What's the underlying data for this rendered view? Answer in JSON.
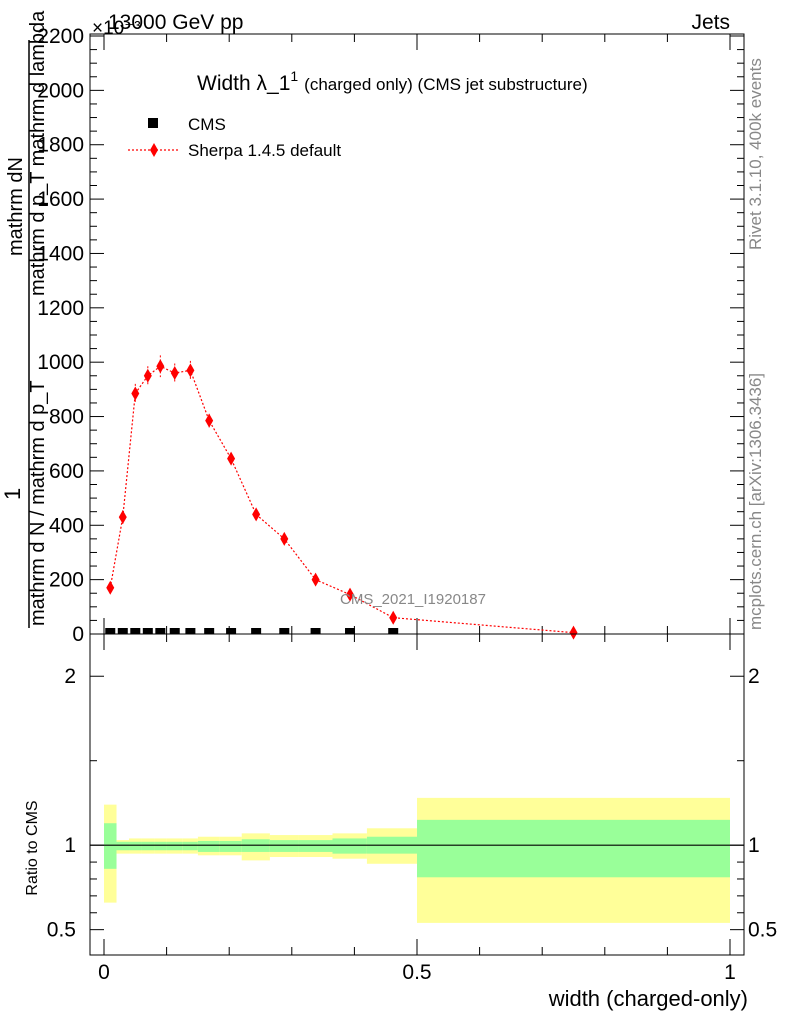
{
  "header": {
    "left": "13000 GeV pp",
    "right": "Jets",
    "exponent": "×10⁻³"
  },
  "side_labels": {
    "rivet": "Rivet 3.1.10,  400k events",
    "mcplots": "mcplots.cern.ch [arXiv:1306.3436]"
  },
  "watermark": "CMS_2021_I1920187",
  "chart_data": [
    {
      "type": "scatter",
      "title": "Width λ_1¹ (charged only) (CMS jet substructure)",
      "title_main": "Width λ_1",
      "title_sup": "1",
      "title_rest": "(charged only) (CMS jet substructure)",
      "ylabel_lines": [
        "mathrm dN",
        "mathrm d p_T mathrm d lambda",
        "1",
        "mathrm d N / mathrm d p_T"
      ],
      "xlim": [
        0,
        1
      ],
      "ylim": [
        0,
        2200
      ],
      "y_ticks": [
        0,
        200,
        400,
        600,
        800,
        1000,
        1200,
        1400,
        1600,
        1800,
        2000,
        2200
      ],
      "x_ticks": [
        0,
        0.5,
        1
      ],
      "legend_position": "top-left",
      "series": [
        {
          "name": "CMS",
          "marker": "square",
          "color": "#000000",
          "x": [
            0.01,
            0.03,
            0.05,
            0.07,
            0.09,
            0.113,
            0.138,
            0.168,
            0.203,
            0.243,
            0.288,
            0.338,
            0.393,
            0.462
          ],
          "y": [
            0,
            0,
            0,
            0,
            0,
            0,
            0,
            0,
            0,
            0,
            0,
            0,
            0,
            0
          ]
        },
        {
          "name": "Sherpa 1.4.5 default",
          "marker": "diamond",
          "color": "#ff0000",
          "line": "dotted",
          "x": [
            0.01,
            0.03,
            0.05,
            0.07,
            0.09,
            0.113,
            0.138,
            0.168,
            0.203,
            0.243,
            0.288,
            0.338,
            0.393,
            0.462,
            0.75
          ],
          "y": [
            170,
            430,
            885,
            950,
            985,
            960,
            970,
            785,
            645,
            440,
            350,
            200,
            145,
            60,
            5
          ],
          "yerr": [
            20,
            25,
            35,
            35,
            40,
            35,
            35,
            25,
            20,
            20,
            18,
            12,
            10,
            6,
            1
          ]
        }
      ]
    },
    {
      "type": "area",
      "xlabel": "width (charged-only)",
      "ylabel": "Ratio to CMS",
      "xlim": [
        0,
        1
      ],
      "ylim": [
        0.35,
        2.25
      ],
      "y_ticks": [
        0.5,
        1,
        2
      ],
      "x_ticks": [
        0,
        0.5,
        1
      ],
      "bins": [
        {
          "lo": 0.0,
          "hi": 0.02,
          "band_inner": [
            0.86,
            1.13
          ],
          "band_outer": [
            0.66,
            1.24
          ]
        },
        {
          "lo": 0.02,
          "hi": 0.04,
          "band_inner": [
            0.97,
            1.02
          ],
          "band_outer": [
            0.95,
            1.03
          ]
        },
        {
          "lo": 0.04,
          "hi": 0.06,
          "band_inner": [
            0.97,
            1.02
          ],
          "band_outer": [
            0.95,
            1.04
          ]
        },
        {
          "lo": 0.06,
          "hi": 0.08,
          "band_inner": [
            0.97,
            1.02
          ],
          "band_outer": [
            0.95,
            1.04
          ]
        },
        {
          "lo": 0.08,
          "hi": 0.1,
          "band_inner": [
            0.97,
            1.02
          ],
          "band_outer": [
            0.95,
            1.04
          ]
        },
        {
          "lo": 0.1,
          "hi": 0.125,
          "band_inner": [
            0.97,
            1.02
          ],
          "band_outer": [
            0.95,
            1.04
          ]
        },
        {
          "lo": 0.125,
          "hi": 0.15,
          "band_inner": [
            0.97,
            1.02
          ],
          "band_outer": [
            0.95,
            1.04
          ]
        },
        {
          "lo": 0.15,
          "hi": 0.185,
          "band_inner": [
            0.96,
            1.025
          ],
          "band_outer": [
            0.94,
            1.05
          ]
        },
        {
          "lo": 0.185,
          "hi": 0.22,
          "band_inner": [
            0.96,
            1.025
          ],
          "band_outer": [
            0.94,
            1.05
          ]
        },
        {
          "lo": 0.22,
          "hi": 0.265,
          "band_inner": [
            0.96,
            1.035
          ],
          "band_outer": [
            0.91,
            1.07
          ]
        },
        {
          "lo": 0.265,
          "hi": 0.31,
          "band_inner": [
            0.96,
            1.03
          ],
          "band_outer": [
            0.93,
            1.06
          ]
        },
        {
          "lo": 0.31,
          "hi": 0.365,
          "band_inner": [
            0.96,
            1.03
          ],
          "band_outer": [
            0.93,
            1.06
          ]
        },
        {
          "lo": 0.365,
          "hi": 0.42,
          "band_inner": [
            0.95,
            1.04
          ],
          "band_outer": [
            0.92,
            1.07
          ]
        },
        {
          "lo": 0.42,
          "hi": 0.5,
          "band_inner": [
            0.95,
            1.05
          ],
          "band_outer": [
            0.89,
            1.1
          ]
        },
        {
          "lo": 0.5,
          "hi": 1.0,
          "band_inner": [
            0.81,
            1.15
          ],
          "band_outer": [
            0.54,
            1.28
          ]
        }
      ],
      "colors": {
        "inner": "#99ff99",
        "outer": "#ffff99",
        "reference_line": "#000000"
      }
    }
  ]
}
